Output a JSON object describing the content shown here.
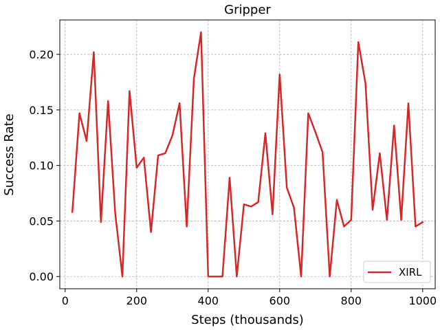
{
  "chart_data": {
    "type": "line",
    "title": "Gripper",
    "xlabel": "Steps (thousands)",
    "ylabel": "Success Rate",
    "xlim": [
      -15,
      1035
    ],
    "ylim": [
      -0.011,
      0.231
    ],
    "xticks": [
      0,
      200,
      400,
      600,
      800,
      1000
    ],
    "yticks": [
      0.0,
      0.05,
      0.1,
      0.15,
      0.2
    ],
    "xtick_labels": [
      "0",
      "200",
      "400",
      "600",
      "800",
      "1000"
    ],
    "ytick_labels": [
      "0.00",
      "0.05",
      "0.10",
      "0.15",
      "0.20"
    ],
    "grid": true,
    "legend_position": "lower-right",
    "series": [
      {
        "name": "XIRL",
        "color": "#d62728",
        "x": [
          20,
          40,
          60,
          80,
          100,
          120,
          140,
          160,
          180,
          200,
          220,
          240,
          260,
          280,
          300,
          320,
          340,
          360,
          380,
          400,
          420,
          440,
          460,
          480,
          500,
          520,
          540,
          560,
          580,
          600,
          620,
          640,
          660,
          680,
          700,
          720,
          740,
          760,
          780,
          800,
          820,
          840,
          860,
          880,
          900,
          920,
          940,
          960,
          980,
          1000
        ],
        "y": [
          0.058,
          0.147,
          0.122,
          0.202,
          0.049,
          0.158,
          0.057,
          0.0,
          0.167,
          0.098,
          0.107,
          0.04,
          0.109,
          0.111,
          0.127,
          0.156,
          0.045,
          0.178,
          0.22,
          0.0,
          0.0,
          0.0,
          0.089,
          0.0,
          0.065,
          0.063,
          0.067,
          0.129,
          0.056,
          0.182,
          0.08,
          0.062,
          0.0,
          0.147,
          0.13,
          0.112,
          0.0,
          0.069,
          0.045,
          0.051,
          0.211,
          0.174,
          0.06,
          0.111,
          0.051,
          0.136,
          0.051,
          0.156,
          0.045,
          0.049
        ]
      }
    ]
  }
}
